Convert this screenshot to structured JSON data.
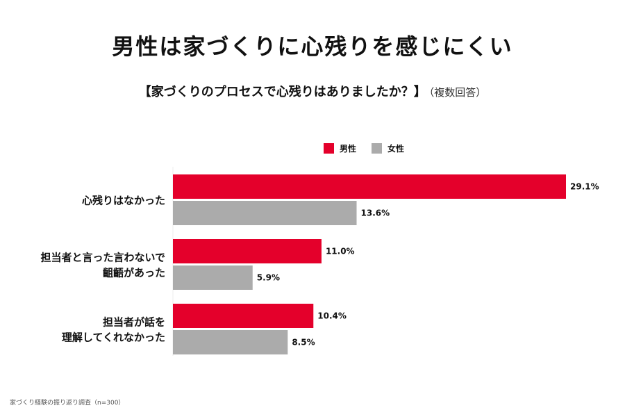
{
  "header": {
    "title": "男性は家づくりに心残りを感じにくい",
    "subtitle": "【家づくりのプロセスで心残りはありましたか？】",
    "subtitle_note": "（複数回答）"
  },
  "footnote": "家づくり経験の振り返り調査（n=300）",
  "colors": {
    "male": "#e4002b",
    "female": "#ababab"
  },
  "chart_data": {
    "type": "bar",
    "orientation": "horizontal",
    "categories": [
      [
        "心残りはなかった"
      ],
      [
        "担当者と言った言わないで",
        "齟齬があった"
      ],
      [
        "担当者が話を",
        "理解してくれなかった"
      ]
    ],
    "series": [
      {
        "name": "男性",
        "color": "#e4002b",
        "values": [
          29.1,
          11.0,
          10.4
        ],
        "labels": [
          "29.1%",
          "11.0%",
          "10.4%"
        ]
      },
      {
        "name": "女性",
        "color": "#ababab",
        "values": [
          13.6,
          5.9,
          8.5
        ],
        "labels": [
          "13.6%",
          "5.9%",
          "8.5%"
        ]
      }
    ],
    "unit": "%",
    "xlim": [
      0,
      29.1
    ],
    "legend_position": "top",
    "grid": false
  }
}
